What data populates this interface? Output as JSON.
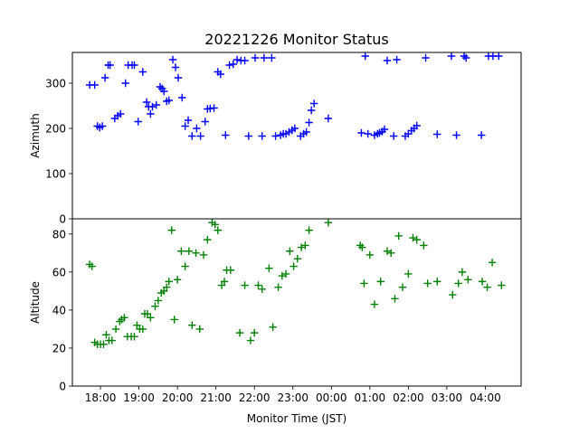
{
  "chart_data": {
    "type": "scatter",
    "title": "20221226 Monitor Status",
    "xlabel": "Monitor Time (JST)",
    "x_ticks": [
      "18:00",
      "19:00",
      "20:00",
      "21:00",
      "22:00",
      "23:00",
      "00:00",
      "01:00",
      "02:00",
      "03:00",
      "04:00"
    ],
    "x_tick_hours": [
      18,
      19,
      20,
      21,
      22,
      23,
      24,
      25,
      26,
      27,
      28
    ],
    "xlim": [
      17.27,
      28.93
    ],
    "marker": "+",
    "panels": [
      {
        "ylabel": "Azimuth",
        "ylim": [
          0,
          368
        ],
        "yticks": [
          0,
          100,
          200,
          300
        ],
        "color": "#0000ff",
        "points": [
          [
            17.72,
            296
          ],
          [
            17.85,
            296
          ],
          [
            17.92,
            205
          ],
          [
            17.98,
            202
          ],
          [
            18.05,
            205
          ],
          [
            18.12,
            312
          ],
          [
            18.2,
            340
          ],
          [
            18.25,
            340
          ],
          [
            18.37,
            222
          ],
          [
            18.45,
            228
          ],
          [
            18.52,
            232
          ],
          [
            18.65,
            300
          ],
          [
            18.72,
            340
          ],
          [
            18.82,
            340
          ],
          [
            18.88,
            340
          ],
          [
            18.98,
            215
          ],
          [
            19.1,
            325
          ],
          [
            19.2,
            258
          ],
          [
            19.25,
            248
          ],
          [
            19.3,
            232
          ],
          [
            19.35,
            248
          ],
          [
            19.45,
            252
          ],
          [
            19.55,
            292
          ],
          [
            19.6,
            288
          ],
          [
            19.65,
            282
          ],
          [
            19.72,
            260
          ],
          [
            19.78,
            262
          ],
          [
            19.88,
            352
          ],
          [
            19.95,
            335
          ],
          [
            20.02,
            312
          ],
          [
            20.12,
            268
          ],
          [
            20.2,
            205
          ],
          [
            20.28,
            218
          ],
          [
            20.38,
            183
          ],
          [
            20.5,
            200
          ],
          [
            20.6,
            183
          ],
          [
            20.72,
            215
          ],
          [
            20.78,
            243
          ],
          [
            20.85,
            244
          ],
          [
            20.95,
            245
          ],
          [
            21.05,
            325
          ],
          [
            21.12,
            320
          ],
          [
            21.25,
            185
          ],
          [
            21.35,
            340
          ],
          [
            21.45,
            342
          ],
          [
            21.55,
            352
          ],
          [
            21.65,
            350
          ],
          [
            21.75,
            350
          ],
          [
            21.85,
            183
          ],
          [
            22.02,
            356
          ],
          [
            22.2,
            183
          ],
          [
            22.25,
            356
          ],
          [
            22.45,
            356
          ],
          [
            22.55,
            183
          ],
          [
            22.68,
            185
          ],
          [
            22.75,
            188
          ],
          [
            22.82,
            188
          ],
          [
            22.9,
            192
          ],
          [
            22.98,
            196
          ],
          [
            23.05,
            200
          ],
          [
            23.2,
            183
          ],
          [
            23.28,
            188
          ],
          [
            23.35,
            192
          ],
          [
            23.42,
            213
          ],
          [
            23.48,
            240
          ],
          [
            23.55,
            255
          ],
          [
            23.92,
            222
          ],
          [
            24.78,
            190
          ],
          [
            24.88,
            360
          ],
          [
            24.95,
            188
          ],
          [
            25.12,
            185
          ],
          [
            25.2,
            188
          ],
          [
            25.25,
            190
          ],
          [
            25.32,
            193
          ],
          [
            25.38,
            198
          ],
          [
            25.45,
            350
          ],
          [
            25.62,
            183
          ],
          [
            25.7,
            352
          ],
          [
            25.92,
            183
          ],
          [
            26.0,
            188
          ],
          [
            26.08,
            195
          ],
          [
            26.15,
            200
          ],
          [
            26.22,
            206
          ],
          [
            26.45,
            356
          ],
          [
            26.75,
            187
          ],
          [
            27.12,
            360
          ],
          [
            27.25,
            185
          ],
          [
            27.45,
            360
          ],
          [
            27.5,
            356
          ],
          [
            27.9,
            185
          ],
          [
            28.08,
            360
          ],
          [
            28.2,
            360
          ],
          [
            28.35,
            360
          ]
        ]
      },
      {
        "ylabel": "Altitude",
        "ylim": [
          0,
          88
        ],
        "yticks": [
          0,
          20,
          40,
          60,
          80
        ],
        "color": "#008000",
        "points": [
          [
            17.72,
            64
          ],
          [
            17.78,
            63
          ],
          [
            17.85,
            23
          ],
          [
            17.92,
            22
          ],
          [
            18.0,
            22
          ],
          [
            18.08,
            22
          ],
          [
            18.15,
            27
          ],
          [
            18.22,
            24
          ],
          [
            18.3,
            24
          ],
          [
            18.4,
            30
          ],
          [
            18.5,
            34
          ],
          [
            18.55,
            35
          ],
          [
            18.62,
            36
          ],
          [
            18.7,
            26
          ],
          [
            18.8,
            26
          ],
          [
            18.88,
            26
          ],
          [
            18.95,
            32
          ],
          [
            19.02,
            30
          ],
          [
            19.1,
            30
          ],
          [
            19.15,
            38
          ],
          [
            19.22,
            38
          ],
          [
            19.3,
            36
          ],
          [
            19.42,
            42
          ],
          [
            19.5,
            45
          ],
          [
            19.58,
            49
          ],
          [
            19.65,
            50
          ],
          [
            19.72,
            52
          ],
          [
            19.78,
            55
          ],
          [
            19.85,
            82
          ],
          [
            19.92,
            35
          ],
          [
            20.0,
            56
          ],
          [
            20.1,
            71
          ],
          [
            20.2,
            63
          ],
          [
            20.3,
            71
          ],
          [
            20.38,
            32
          ],
          [
            20.48,
            70
          ],
          [
            20.58,
            30
          ],
          [
            20.68,
            69
          ],
          [
            20.78,
            77
          ],
          [
            20.9,
            86
          ],
          [
            20.98,
            85
          ],
          [
            21.05,
            82
          ],
          [
            21.15,
            53
          ],
          [
            21.22,
            55
          ],
          [
            21.28,
            61
          ],
          [
            21.38,
            61
          ],
          [
            21.62,
            28
          ],
          [
            21.75,
            53
          ],
          [
            21.9,
            24
          ],
          [
            22.0,
            28
          ],
          [
            22.1,
            53
          ],
          [
            22.2,
            51
          ],
          [
            22.38,
            62
          ],
          [
            22.48,
            31
          ],
          [
            22.62,
            52
          ],
          [
            22.72,
            58
          ],
          [
            22.82,
            59
          ],
          [
            22.92,
            71
          ],
          [
            23.02,
            63
          ],
          [
            23.12,
            67
          ],
          [
            23.22,
            73
          ],
          [
            23.32,
            74
          ],
          [
            23.42,
            82
          ],
          [
            23.92,
            86
          ],
          [
            24.75,
            74
          ],
          [
            24.8,
            73
          ],
          [
            24.85,
            54
          ],
          [
            25.0,
            69
          ],
          [
            25.12,
            43
          ],
          [
            25.28,
            55
          ],
          [
            25.45,
            71
          ],
          [
            25.55,
            70
          ],
          [
            25.65,
            46
          ],
          [
            25.75,
            79
          ],
          [
            25.85,
            52
          ],
          [
            26.0,
            59
          ],
          [
            26.12,
            78
          ],
          [
            26.22,
            77
          ],
          [
            26.4,
            74
          ],
          [
            26.5,
            54
          ],
          [
            26.75,
            55
          ],
          [
            27.15,
            48
          ],
          [
            27.3,
            54
          ],
          [
            27.4,
            60
          ],
          [
            27.55,
            56
          ],
          [
            27.92,
            55
          ],
          [
            28.05,
            52
          ],
          [
            28.18,
            65
          ],
          [
            28.42,
            53
          ]
        ]
      }
    ]
  }
}
